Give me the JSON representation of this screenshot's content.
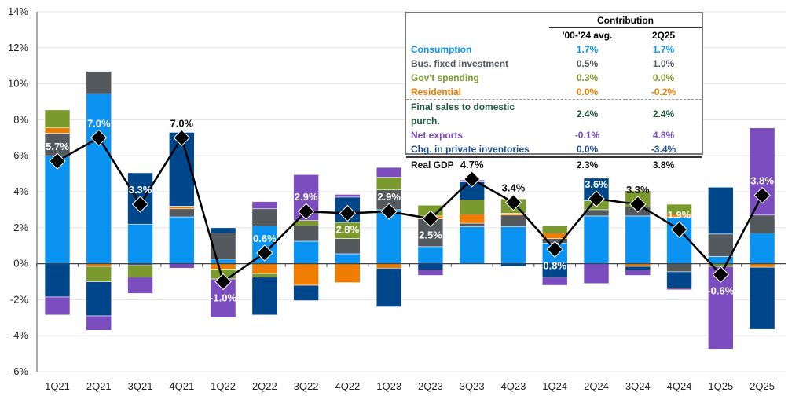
{
  "chart_data": {
    "type": "stacked bar + line",
    "categories": [
      "1Q21",
      "2Q21",
      "3Q21",
      "4Q21",
      "1Q22",
      "2Q22",
      "3Q22",
      "4Q22",
      "1Q23",
      "2Q23",
      "3Q23",
      "4Q23",
      "1Q24",
      "2Q24",
      "3Q24",
      "4Q24",
      "1Q25",
      "2Q25"
    ],
    "ylim": [
      -6,
      14
    ],
    "yticks": [
      "-6%",
      "-4%",
      "-2%",
      "0%",
      "2%",
      "4%",
      "6%",
      "8%",
      "10%",
      "12%",
      "14%"
    ],
    "ytick_values": [
      -6,
      -4,
      -2,
      0,
      2,
      4,
      6,
      8,
      10,
      12,
      14
    ],
    "grid": true,
    "series": [
      {
        "name": "Consumption",
        "color": "#0A93F0",
        "values": [
          6.0,
          9.45,
          2.2,
          2.6,
          0.25,
          2.1,
          1.25,
          0.55,
          3.0,
          0.95,
          2.05,
          2.05,
          1.15,
          2.65,
          2.65,
          2.6,
          0.4,
          1.7
        ]
      },
      {
        "name": "Bus. fixed investment",
        "color": "#54595E",
        "values": [
          1.25,
          1.25,
          -0.1,
          0.45,
          1.45,
          0.95,
          0.85,
          0.85,
          1.1,
          1.55,
          0.2,
          0.65,
          0.25,
          0.35,
          0.5,
          -0.45,
          1.25,
          1.0
        ]
      },
      {
        "name": "Residential",
        "color": "#F07C00",
        "values": [
          0.3,
          -0.15,
          0,
          0.1,
          -0.3,
          -0.55,
          -1.2,
          -1.05,
          -0.25,
          0.15,
          0.5,
          0.1,
          0.3,
          0,
          -0.15,
          0.15,
          0,
          -0.2
        ]
      },
      {
        "name": "Gov't spending",
        "color": "#7A9A2E",
        "values": [
          1.0,
          -0.85,
          -0.65,
          0.05,
          -0.55,
          -0.2,
          0.3,
          0.9,
          0.7,
          0.6,
          0.8,
          0.8,
          0.4,
          0.5,
          0.9,
          0.55,
          -0.15,
          0
        ]
      },
      {
        "name": "Chg. in private inventories",
        "color": "#00468B",
        "values": [
          -1.85,
          -1.9,
          2.85,
          4.1,
          0.3,
          -2.1,
          -0.85,
          1.4,
          -2.15,
          -0.35,
          1.0,
          -0.15,
          -0.75,
          1.25,
          -0.2,
          -0.9,
          2.6,
          -3.45
        ]
      },
      {
        "name": "Net exports",
        "color": "#7B4DBE",
        "values": [
          -1.0,
          -0.8,
          -0.9,
          -0.25,
          -2.15,
          0.4,
          2.55,
          0.15,
          0.55,
          -0.3,
          0.1,
          0,
          -0.45,
          -1.1,
          -0.3,
          -0.1,
          -4.6,
          4.85
        ]
      }
    ],
    "line": {
      "name": "Real GDP",
      "color": "#000000",
      "values": [
        5.7,
        7.0,
        3.3,
        7.0,
        -1.0,
        0.6,
        2.9,
        2.8,
        2.9,
        2.5,
        4.7,
        3.4,
        0.8,
        3.6,
        3.3,
        1.9,
        -0.6,
        3.8
      ],
      "labels": [
        "5.7%",
        "7.0%",
        "3.3%",
        "7.0%",
        "-1.0%",
        "0.6%",
        "2.9%",
        "2.8%",
        "2.9%",
        "2.5%",
        "4.7%",
        "3.4%",
        "0.8%",
        "3.6%",
        "3.3%",
        "1.9%",
        "-0.6%",
        "3.8%"
      ]
    }
  },
  "legend_table": {
    "group_header": "Contribution",
    "col1": "'00-'24 avg.",
    "col2": "2Q25",
    "rows": [
      {
        "label": "Consumption",
        "avg": "1.7%",
        "q": "1.7%",
        "color": "#0A93F0"
      },
      {
        "label": "Bus. fixed investment",
        "avg": "0.5%",
        "q": "1.0%",
        "color": "#54595E"
      },
      {
        "label": "Gov't spending",
        "avg": "0.3%",
        "q": "0.0%",
        "color": "#7A9A2E"
      },
      {
        "label": "Residential",
        "avg": "0.0%",
        "q": "-0.2%",
        "color": "#F07C00"
      },
      {
        "label": "Final sales to domestic purch.",
        "avg": "2.4%",
        "q": "2.4%",
        "color": "#1E5A3A"
      },
      {
        "label": "Net exports",
        "avg": "-0.1%",
        "q": "4.8%",
        "color": "#7B4DBE"
      },
      {
        "label": "Chg. in private inventories",
        "avg": "0.0%",
        "q": "-3.4%",
        "color": "#1F4E8C"
      },
      {
        "label": "Real GDP",
        "avg": "2.3%",
        "q": "3.8%",
        "color": "#111111"
      }
    ]
  }
}
